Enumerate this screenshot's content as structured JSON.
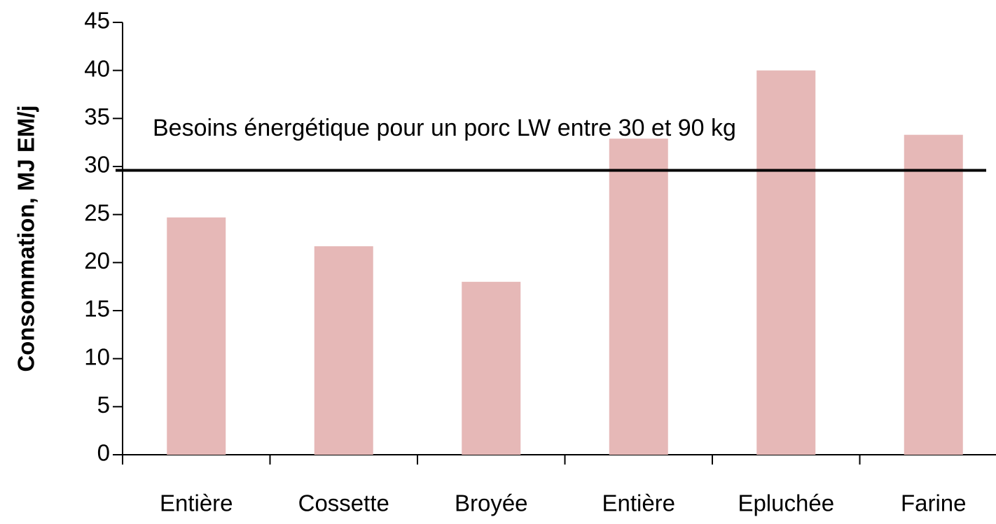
{
  "chart_data": {
    "type": "bar",
    "y_label": "Consommation,  MJ EM/j",
    "categories": [
      "Entière",
      "Cossette",
      "Broyée",
      "Entière",
      "Epluchée",
      "Farine"
    ],
    "values": [
      24.7,
      21.7,
      18.0,
      32.9,
      40.0,
      33.3
    ],
    "color": "#e6b8b7",
    "ylim": [
      0,
      45
    ],
    "yticks": [
      0,
      5,
      10,
      15,
      20,
      25,
      30,
      35,
      40,
      45
    ],
    "grid": false,
    "reference_line": {
      "value": 29.6,
      "label": "Besoins énergétique pour un porc LW entre 30 et 90 kg",
      "color": "#000000"
    }
  }
}
